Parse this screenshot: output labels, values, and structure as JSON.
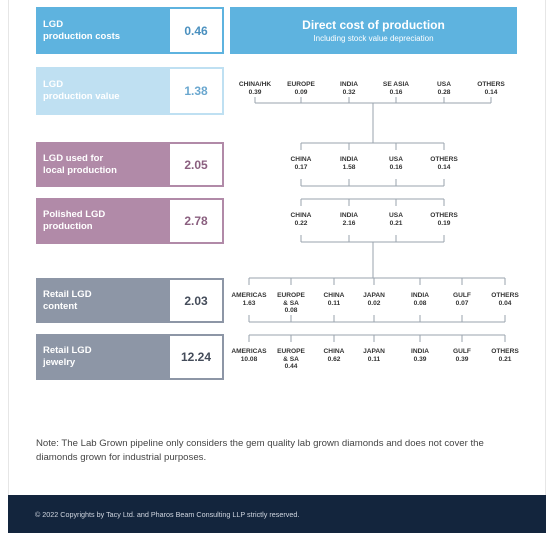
{
  "header": {
    "title": "Direct cost of production",
    "subtitle": "Including stock value depreciation"
  },
  "stages": [
    {
      "label_lines": [
        "LGD",
        "production costs"
      ],
      "value": "0.46"
    },
    {
      "label_lines": [
        "LGD",
        "production value"
      ],
      "value": "1.38"
    },
    {
      "label_lines": [
        "LGD used for",
        "local production"
      ],
      "value": "2.05"
    },
    {
      "label_lines": [
        "Polished LGD",
        "production"
      ],
      "value": "2.78"
    },
    {
      "label_lines": [
        "Retail LGD",
        "content"
      ],
      "value": "2.03"
    },
    {
      "label_lines": [
        "Retail LGD",
        "jewelry"
      ],
      "value": "12.24"
    }
  ],
  "rows": [
    {
      "nodes": [
        {
          "name_lines": [
            "CHINA/HK"
          ],
          "value": "0.39"
        },
        {
          "name_lines": [
            "EUROPE"
          ],
          "value": "0.09"
        },
        {
          "name_lines": [
            "INDIA"
          ],
          "value": "0.32"
        },
        {
          "name_lines": [
            "SE ASIA"
          ],
          "value": "0.16"
        },
        {
          "name_lines": [
            "USA"
          ],
          "value": "0.28"
        },
        {
          "name_lines": [
            "OTHERS"
          ],
          "value": "0.14"
        }
      ]
    },
    {
      "nodes": [
        {
          "name_lines": [
            "CHINA"
          ],
          "value": "0.17"
        },
        {
          "name_lines": [
            "INDIA"
          ],
          "value": "1.58"
        },
        {
          "name_lines": [
            "USA"
          ],
          "value": "0.16"
        },
        {
          "name_lines": [
            "OTHERS"
          ],
          "value": "0.14"
        }
      ]
    },
    {
      "nodes": [
        {
          "name_lines": [
            "CHINA"
          ],
          "value": "0.22"
        },
        {
          "name_lines": [
            "INDIA"
          ],
          "value": "2.16"
        },
        {
          "name_lines": [
            "USA"
          ],
          "value": "0.21"
        },
        {
          "name_lines": [
            "OTHERS"
          ],
          "value": "0.19"
        }
      ]
    },
    {
      "nodes": [
        {
          "name_lines": [
            "AMERICAS"
          ],
          "value": "1.63"
        },
        {
          "name_lines": [
            "EUROPE",
            "& SA"
          ],
          "value": "0.08"
        },
        {
          "name_lines": [
            "CHINA"
          ],
          "value": "0.11"
        },
        {
          "name_lines": [
            "JAPAN"
          ],
          "value": "0.02"
        },
        {
          "name_lines": [
            "INDIA"
          ],
          "value": "0.08"
        },
        {
          "name_lines": [
            "GULF"
          ],
          "value": "0.07"
        },
        {
          "name_lines": [
            "OTHERS"
          ],
          "value": "0.04"
        }
      ]
    },
    {
      "nodes": [
        {
          "name_lines": [
            "AMERICAS"
          ],
          "value": "10.08"
        },
        {
          "name_lines": [
            "EUROPE",
            "& SA"
          ],
          "value": "0.44"
        },
        {
          "name_lines": [
            "CHINA"
          ],
          "value": "0.62"
        },
        {
          "name_lines": [
            "JAPAN"
          ],
          "value": "0.11"
        },
        {
          "name_lines": [
            "INDIA"
          ],
          "value": "0.39"
        },
        {
          "name_lines": [
            "GULF"
          ],
          "value": "0.39"
        },
        {
          "name_lines": [
            "OTHERS"
          ],
          "value": "0.21"
        }
      ]
    }
  ],
  "note": "Note: The Lab Grown pipeline only considers the gem quality lab grown diamonds and does not cover the diamonds grown for industrial purposes.",
  "footer": "© 2022 Copyrights by Tacy Ltd. and Pharos Beam Consulting LLP strictly reserved.",
  "colors": {
    "header_blue": "#5eb3df",
    "light_blue": "#bfe0f2",
    "mauve": "#b18aa8",
    "slate": "#8d96a6",
    "footer_navy": "#13253d",
    "connector": "#9aa3ad"
  }
}
